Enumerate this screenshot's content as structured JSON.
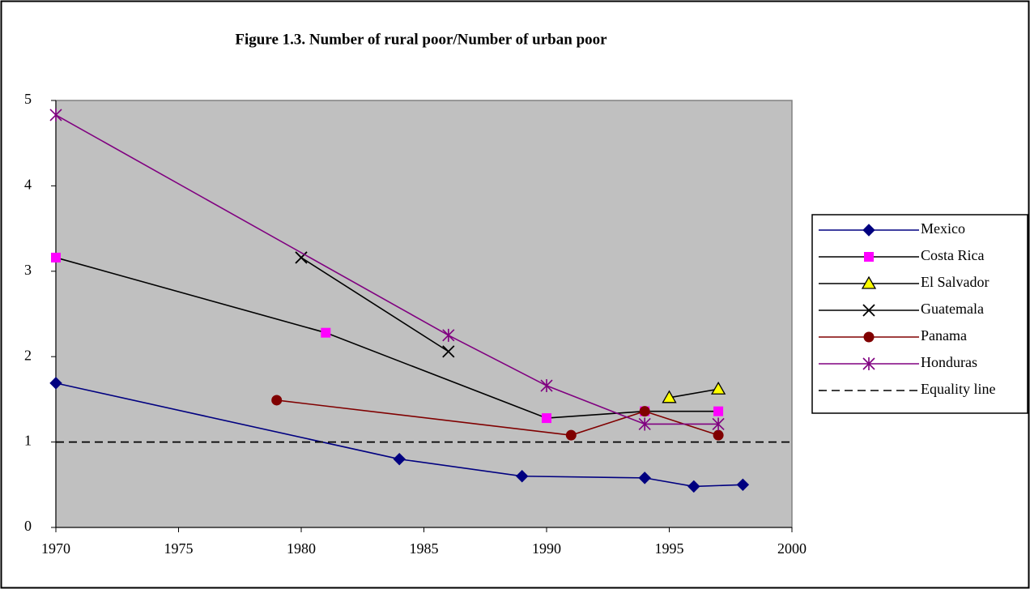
{
  "chart_data": {
    "type": "line",
    "title": "Figure 1.3.  Number of rural poor/Number of urban poor",
    "xlim": [
      1970,
      2000
    ],
    "xticks": [
      1970,
      1975,
      1980,
      1985,
      1990,
      1995,
      2000
    ],
    "ylim": [
      0,
      5
    ],
    "yticks": [
      0,
      1,
      2,
      3,
      4,
      5
    ],
    "plot_background": "#c0c0c0",
    "legend": "right",
    "series": [
      {
        "name": "Mexico",
        "color": "#000080",
        "marker": "diamond",
        "marker_color": "#000080",
        "x": [
          1970,
          1984,
          1989,
          1994,
          1996,
          1998
        ],
        "values": [
          1.69,
          0.8,
          0.6,
          0.58,
          0.48,
          0.5
        ]
      },
      {
        "name": "Costa Rica",
        "color": "#000000",
        "marker": "square",
        "marker_color": "#ff00ff",
        "x": [
          1970,
          1981,
          1990,
          1994,
          1997
        ],
        "values": [
          3.16,
          2.28,
          1.28,
          1.36,
          1.36
        ]
      },
      {
        "name": "El Salvador",
        "color": "#000000",
        "marker": "triangle",
        "marker_color": "#ffff00",
        "x": [
          1995,
          1997
        ],
        "values": [
          1.52,
          1.62
        ]
      },
      {
        "name": "Guatemala",
        "color": "#000000",
        "marker": "x",
        "marker_color": "#000000",
        "x": [
          1980,
          1986
        ],
        "values": [
          3.16,
          2.06
        ]
      },
      {
        "name": "Panama",
        "color": "#800000",
        "marker": "circle",
        "marker_color": "#800000",
        "x": [
          1979,
          1991,
          1994,
          1997
        ],
        "values": [
          1.49,
          1.08,
          1.36,
          1.08
        ]
      },
      {
        "name": "Honduras",
        "color": "#800080",
        "marker": "star",
        "marker_color": "#800080",
        "x": [
          1970,
          1986,
          1990,
          1994,
          1997
        ],
        "values": [
          4.83,
          2.25,
          1.66,
          1.21,
          1.21
        ]
      },
      {
        "name": "Equality line",
        "color": "#000000",
        "dash": true,
        "x": [
          1970,
          2000
        ],
        "values": [
          1,
          1
        ]
      }
    ]
  }
}
